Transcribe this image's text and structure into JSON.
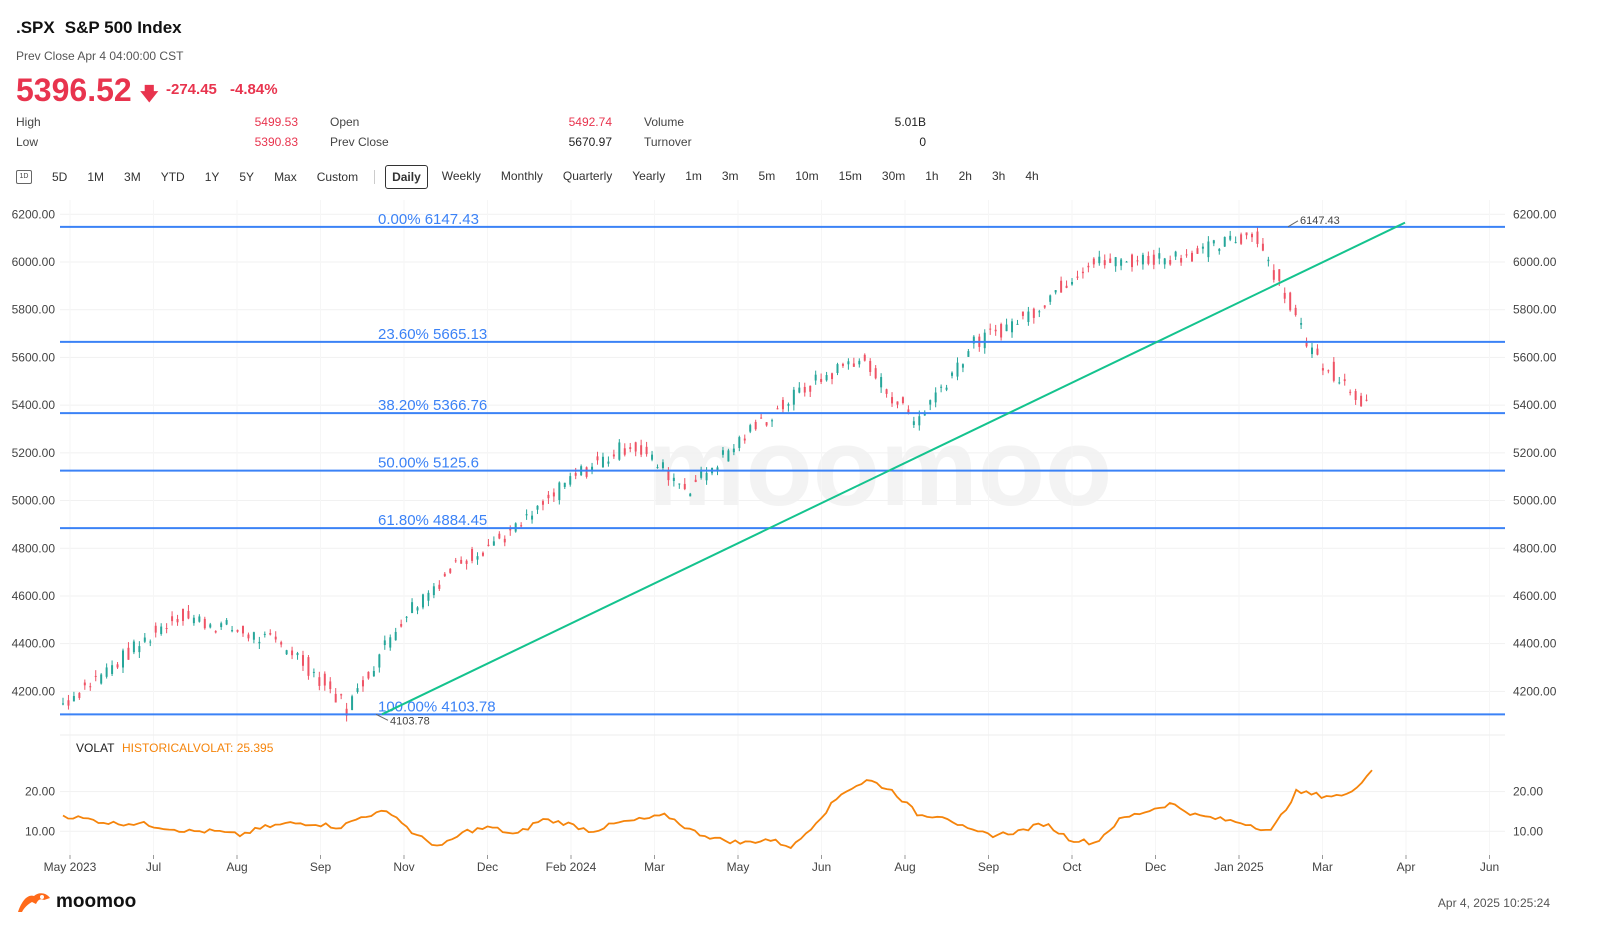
{
  "header": {
    "symbol": ".SPX",
    "name": "S&P 500 Index",
    "prev_close_time": "Prev Close Apr 4 04:00:00 CST",
    "price": "5396.52",
    "change": "-274.45",
    "change_pct": "-4.84%"
  },
  "stats": {
    "high_label": "High",
    "high_value": "5499.53",
    "low_label": "Low",
    "low_value": "5390.83",
    "open_label": "Open",
    "open_value": "5492.74",
    "prevclose_label": "Prev Close",
    "prevclose_value": "5670.97",
    "volume_label": "Volume",
    "volume_value": "5.01B",
    "turnover_label": "Turnover",
    "turnover_value": "0"
  },
  "toolbar": {
    "icon_label": "1D",
    "ranges": [
      "5D",
      "1M",
      "3M",
      "YTD",
      "1Y",
      "5Y",
      "Max",
      "Custom"
    ],
    "periods": [
      "Daily",
      "Weekly",
      "Monthly",
      "Quarterly",
      "Yearly",
      "1m",
      "3m",
      "5m",
      "10m",
      "15m",
      "30m",
      "1h",
      "2h",
      "3h",
      "4h"
    ],
    "active_period": "Daily"
  },
  "indicator": {
    "name": "VOLAT",
    "value_label": "HISTORICALVOLAT: 25.395"
  },
  "watermark": "moomoo",
  "footer": {
    "brand": "moomoo",
    "timestamp": "Apr 4, 2025 10:25:24"
  },
  "colors": {
    "up": "#26a69a",
    "down": "#ef5365",
    "fib": "#3b82f6",
    "trend": "#14c38e",
    "volat": "#f5840b"
  },
  "chart_data": [
    {
      "type": "candlestick",
      "title": "",
      "ylim": [
        4080,
        6260
      ],
      "y_ticks": [
        4200,
        4400,
        4600,
        4800,
        5000,
        5200,
        5400,
        5600,
        5800,
        6000,
        6200
      ],
      "y_tick_labels": [
        "4200.00",
        "4400.00",
        "4600.00",
        "4800.00",
        "5000.00",
        "5200.00",
        "5400.00",
        "5600.00",
        "5800.00",
        "6000.00",
        "6200.00"
      ],
      "x_tick_labels": [
        "May 2023",
        "Jul",
        "Aug",
        "Sep",
        "Nov",
        "Dec",
        "Feb 2024",
        "Mar",
        "May",
        "Jun",
        "Aug",
        "Sep",
        "Oct",
        "Dec",
        "Jan 2025",
        "Mar",
        "Apr",
        "Jun"
      ],
      "series": [
        {
          "name": "",
          "x": [
            "2023-05",
            "2023-06",
            "2023-07",
            "2023-08",
            "2023-09",
            "2023-10",
            "2023-11",
            "2023-12",
            "2024-01",
            "2024-02",
            "2024-03",
            "2024-04",
            "2024-05",
            "2024-06",
            "2024-07",
            "2024-08",
            "2024-09",
            "2024-10",
            "2024-11",
            "2024-12",
            "2025-01",
            "2025-02",
            "2025-03",
            "2025-04"
          ],
          "values": [
            4150,
            4330,
            4520,
            4460,
            4380,
            4130,
            4520,
            4750,
            4880,
            5100,
            5240,
            5050,
            5270,
            5460,
            5600,
            5330,
            5650,
            5780,
            5990,
            6010,
            6040,
            6120,
            5620,
            5396.52
          ]
        }
      ],
      "fibonacci": [
        {
          "label": "0.00% 6147.43",
          "value": 6147.43
        },
        {
          "label": "23.60% 5665.13",
          "value": 5665.13
        },
        {
          "label": "38.20% 5366.76",
          "value": 5366.76
        },
        {
          "label": "50.00% 5125.6",
          "value": 5125.6
        },
        {
          "label": "61.80% 4884.45",
          "value": 4884.45
        },
        {
          "label": "100.00% 4103.78",
          "value": 4103.78
        }
      ],
      "annotations": [
        {
          "label": "6147.43",
          "value": 6147.43
        },
        {
          "label": "4103.78",
          "value": 4103.78
        }
      ],
      "trendline": {
        "from": 4103.78,
        "to": 6165
      }
    },
    {
      "type": "line",
      "title": "",
      "ylim": [
        4,
        28
      ],
      "y_ticks": [
        10,
        20
      ],
      "y_tick_labels": [
        "10.00",
        "20.00"
      ],
      "series": [
        {
          "name": "HISTORICALVOLAT",
          "values": [
            14,
            13,
            12,
            12,
            11,
            10,
            10,
            9,
            11,
            12,
            12,
            11,
            14,
            15,
            9,
            6,
            10,
            11,
            9,
            13,
            12,
            10,
            12,
            13,
            14,
            10,
            8,
            7,
            8,
            6,
            13,
            20,
            23,
            20,
            14,
            14,
            10,
            9,
            10,
            12,
            8,
            7,
            13,
            15,
            17,
            14,
            13,
            12,
            10,
            20,
            19,
            19,
            25.4
          ]
        }
      ]
    }
  ]
}
